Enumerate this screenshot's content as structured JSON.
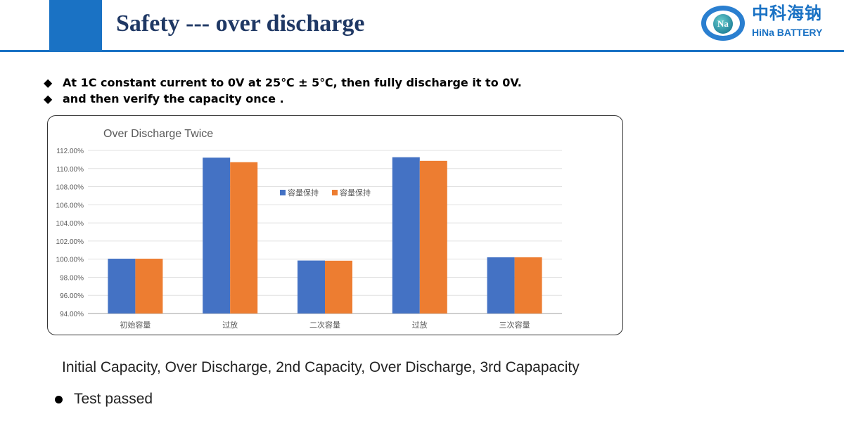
{
  "header": {
    "title": "Safety --- over discharge",
    "logo_cn": "中科海钠",
    "logo_en": "HiNa BATTERY",
    "logo_symbol": "Na"
  },
  "bullets": [
    "At 1C constant current to 0V at 25℃ ± 5℃, then fully discharge it to 0V.",
    "and then verify the capacity once ."
  ],
  "caption": "Initial Capacity, Over Discharge, 2nd Capacity, Over Discharge, 3rd Capapacity",
  "result": "Test passed",
  "chart_data": {
    "type": "bar",
    "title": "Over Discharge Twice",
    "categories": [
      "初始容量",
      "过放",
      "二次容量",
      "过放",
      "三次容量"
    ],
    "series": [
      {
        "name": "容量保持",
        "color": "#4472c4",
        "values": [
          100.05,
          111.2,
          99.85,
          111.25,
          100.2
        ]
      },
      {
        "name": "容量保持",
        "color": "#ed7d31",
        "values": [
          100.05,
          110.7,
          99.83,
          110.85,
          100.2
        ]
      }
    ],
    "ylim": [
      94,
      112
    ],
    "yticks": [
      "94.00%",
      "96.00%",
      "98.00%",
      "100.00%",
      "102.00%",
      "104.00%",
      "106.00%",
      "108.00%",
      "110.00%",
      "112.00%"
    ],
    "grid": true,
    "legend": "center-right"
  }
}
